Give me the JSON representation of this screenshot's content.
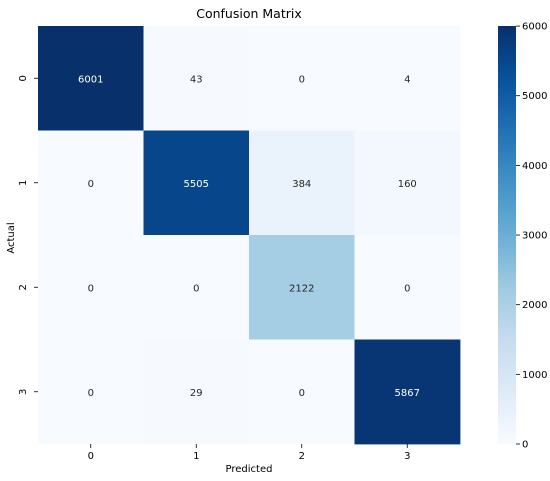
{
  "chart_data": {
    "type": "heatmap",
    "title": "Confusion Matrix",
    "xlabel": "Predicted",
    "ylabel": "Actual",
    "x_categories": [
      "0",
      "1",
      "2",
      "3"
    ],
    "y_categories": [
      "0",
      "1",
      "2",
      "3"
    ],
    "values": [
      [
        6001,
        43,
        0,
        4
      ],
      [
        0,
        5505,
        384,
        160
      ],
      [
        0,
        0,
        2122,
        0
      ],
      [
        0,
        29,
        0,
        5867
      ]
    ],
    "colormap": "Blues",
    "vmin": 0,
    "vmax": 6001,
    "colorbar_ticks": [
      0,
      1000,
      2000,
      3000,
      4000,
      5000,
      6000
    ],
    "grid": false
  }
}
